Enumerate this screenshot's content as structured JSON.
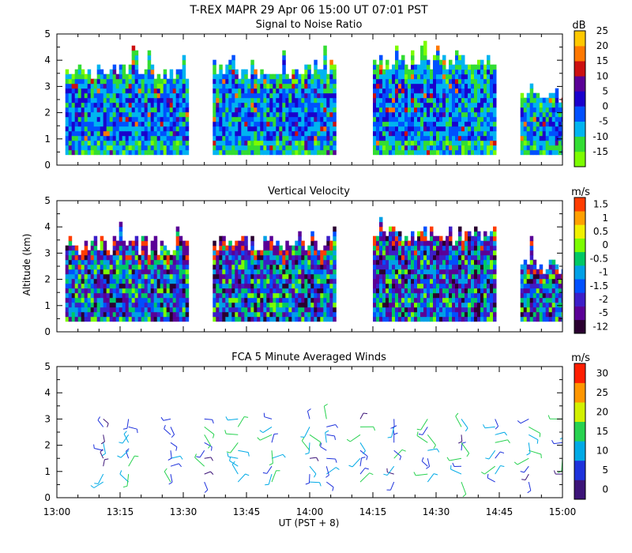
{
  "header": {
    "title": "T-REX  MAPR 29 Apr 06  15:00 UT  07:01  PST"
  },
  "x_axis": {
    "label": "UT  (PST + 8)",
    "range_minutes": [
      0,
      120
    ],
    "ticks": [
      {
        "t": 0,
        "label": "13:00"
      },
      {
        "t": 15,
        "label": "13:15"
      },
      {
        "t": 30,
        "label": "13:30"
      },
      {
        "t": 45,
        "label": "13:45"
      },
      {
        "t": 60,
        "label": "14:00"
      },
      {
        "t": 75,
        "label": "14:15"
      },
      {
        "t": 90,
        "label": "14:30"
      },
      {
        "t": 105,
        "label": "14:45"
      },
      {
        "t": 120,
        "label": "15:00"
      }
    ]
  },
  "y_axis": {
    "label": "Altitude (km)",
    "ticks": [
      "0",
      "1",
      "2",
      "3",
      "4",
      "5"
    ]
  },
  "chart_data": [
    {
      "type": "heatmap",
      "title": "Signal to Noise Ratio",
      "unit": "dB",
      "ylim": [
        0,
        5
      ],
      "xlabel": "UT  (PST + 8)",
      "ylabel": "Altitude (km)",
      "colorbar": [
        {
          "label": "-15",
          "color": "#7cfc00"
        },
        {
          "label": "-10",
          "color": "#33dd33"
        },
        {
          "label": "-5",
          "color": "#00b4f0"
        },
        {
          "label": "0",
          "color": "#0050ff"
        },
        {
          "label": "5",
          "color": "#1a00cc"
        },
        {
          "label": "10",
          "color": "#5a0096"
        },
        {
          "label": "15",
          "color": "#cc1010"
        },
        {
          "label": "20",
          "color": "#ff7800"
        },
        {
          "label": "25",
          "color": "#ffc800"
        }
      ],
      "data_blocks_minutes": [
        [
          2,
          31
        ],
        [
          37,
          66
        ],
        [
          75,
          104
        ],
        [
          110,
          120
        ]
      ]
    },
    {
      "type": "heatmap",
      "title": "Vertical Velocity",
      "unit": "m/s",
      "ylim": [
        0,
        5
      ],
      "xlabel": "UT  (PST + 8)",
      "ylabel": "Altitude (km)",
      "colorbar": [
        {
          "label": "-12",
          "color": "#2a0030"
        },
        {
          "label": "-5",
          "color": "#5a0096"
        },
        {
          "label": "-2",
          "color": "#3c1ec8"
        },
        {
          "label": "-1.5",
          "color": "#0050ff"
        },
        {
          "label": "-1",
          "color": "#00a0e6"
        },
        {
          "label": "-0.5",
          "color": "#00c864"
        },
        {
          "label": "0",
          "color": "#7cfc00"
        },
        {
          "label": "0.5",
          "color": "#f0f000"
        },
        {
          "label": "1",
          "color": "#ffa000"
        },
        {
          "label": "1.5",
          "color": "#ff3c00"
        }
      ],
      "data_blocks_minutes": [
        [
          2,
          31
        ],
        [
          37,
          66
        ],
        [
          75,
          104
        ],
        [
          110,
          120
        ]
      ]
    },
    {
      "type": "scatter",
      "title": "FCA 5 Minute Averaged Winds",
      "unit": "m/s",
      "ylim": [
        0,
        5
      ],
      "xlabel": "UT  (PST + 8)",
      "ylabel": "Altitude (km)",
      "colorbar": [
        {
          "label": "0",
          "color": "#3c1478"
        },
        {
          "label": "5",
          "color": "#1e32dc"
        },
        {
          "label": "10",
          "color": "#00aae6"
        },
        {
          "label": "15",
          "color": "#28d250"
        },
        {
          "label": "20",
          "color": "#d2f000"
        },
        {
          "label": "25",
          "color": "#ff9600"
        },
        {
          "label": "30",
          "color": "#ff1e00"
        }
      ],
      "profile_times_minutes": [
        11,
        17,
        27,
        35,
        43,
        51,
        60,
        64,
        72,
        80,
        88,
        96,
        104,
        112,
        120
      ]
    }
  ]
}
